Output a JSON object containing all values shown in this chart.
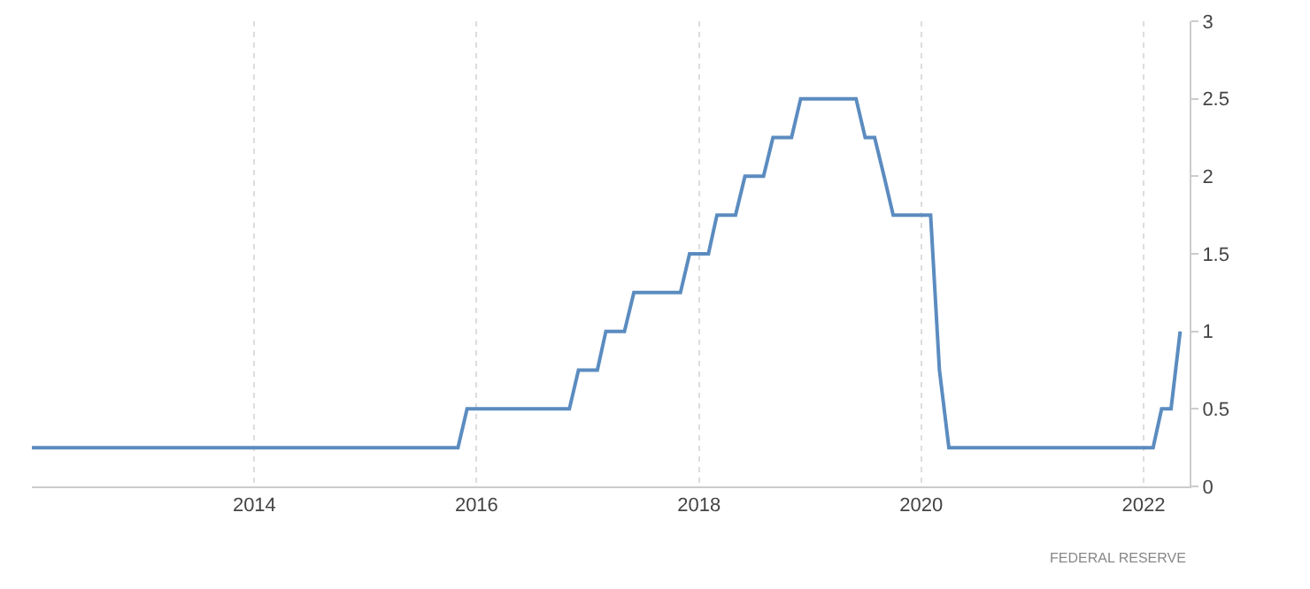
{
  "chart_data": {
    "type": "line",
    "x": [
      "2012-01",
      "2015-11",
      "2015-12",
      "2016-11",
      "2016-12",
      "2017-02",
      "2017-03",
      "2017-05",
      "2017-06",
      "2017-11",
      "2017-12",
      "2018-02",
      "2018-03",
      "2018-05",
      "2018-06",
      "2018-08",
      "2018-09",
      "2018-11",
      "2018-12",
      "2019-06",
      "2019-07",
      "2019-08",
      "2019-09",
      "2019-10",
      "2020-02",
      "2020-03",
      "2020-04",
      "2022-02",
      "2022-03",
      "2022-04",
      "2022-05"
    ],
    "series": [
      {
        "color": "#5b8cc0",
        "values": [
          0.25,
          0.25,
          0.5,
          0.5,
          0.75,
          0.75,
          1,
          1,
          1.25,
          1.25,
          1.5,
          1.5,
          1.75,
          1.75,
          2,
          2,
          2.25,
          2.25,
          2.5,
          2.5,
          2.25,
          2.25,
          2,
          1.75,
          1.75,
          0.75,
          0.25,
          0.25,
          0.5,
          0.5,
          1
        ]
      }
    ],
    "xlim": [
      "2012-01-01",
      "2022-06-01"
    ],
    "xticks": [
      {
        "value": "2014-01-01",
        "label": "2014"
      },
      {
        "value": "2016-01-01",
        "label": "2016"
      },
      {
        "value": "2018-01-01",
        "label": "2018"
      },
      {
        "value": "2020-01-01",
        "label": "2020"
      },
      {
        "value": "2022-01-01",
        "label": "2022"
      }
    ],
    "ylim": [
      0,
      3
    ],
    "yticks": [
      0,
      0.5,
      1,
      1.5,
      2,
      2.5,
      3
    ],
    "grid": "x",
    "marker": "none",
    "line_style": "solid",
    "annotations": [
      "FEDERAL RESERVE"
    ]
  }
}
